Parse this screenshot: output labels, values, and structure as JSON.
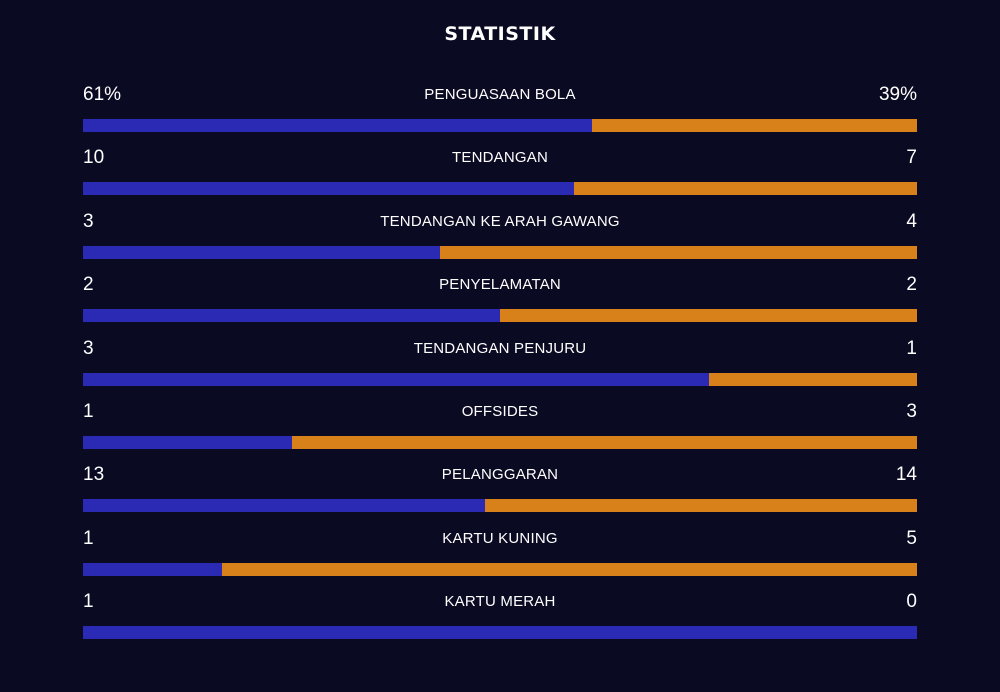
{
  "title": "STATISTIK",
  "colors": {
    "home": "#2a2ab4",
    "away": "#d8801a",
    "background": "#0a0a23"
  },
  "stats": [
    {
      "label": "PENGUASAAN BOLA",
      "home": "61%",
      "away": "39%",
      "home_value": 61,
      "away_value": 39
    },
    {
      "label": "TENDANGAN",
      "home": "10",
      "away": "7",
      "home_value": 10,
      "away_value": 7
    },
    {
      "label": "TENDANGAN KE ARAH GAWANG",
      "home": "3",
      "away": "4",
      "home_value": 3,
      "away_value": 4
    },
    {
      "label": "PENYELAMATAN",
      "home": "2",
      "away": "2",
      "home_value": 2,
      "away_value": 2
    },
    {
      "label": "TENDANGAN PENJURU",
      "home": "3",
      "away": "1",
      "home_value": 3,
      "away_value": 1
    },
    {
      "label": "OFFSIDES",
      "home": "1",
      "away": "3",
      "home_value": 1,
      "away_value": 3
    },
    {
      "label": "PELANGGARAN",
      "home": "13",
      "away": "14",
      "home_value": 13,
      "away_value": 14
    },
    {
      "label": "KARTU KUNING",
      "home": "1",
      "away": "5",
      "home_value": 1,
      "away_value": 5
    },
    {
      "label": "KARTU MERAH",
      "home": "1",
      "away": "0",
      "home_value": 1,
      "away_value": 0
    }
  ]
}
